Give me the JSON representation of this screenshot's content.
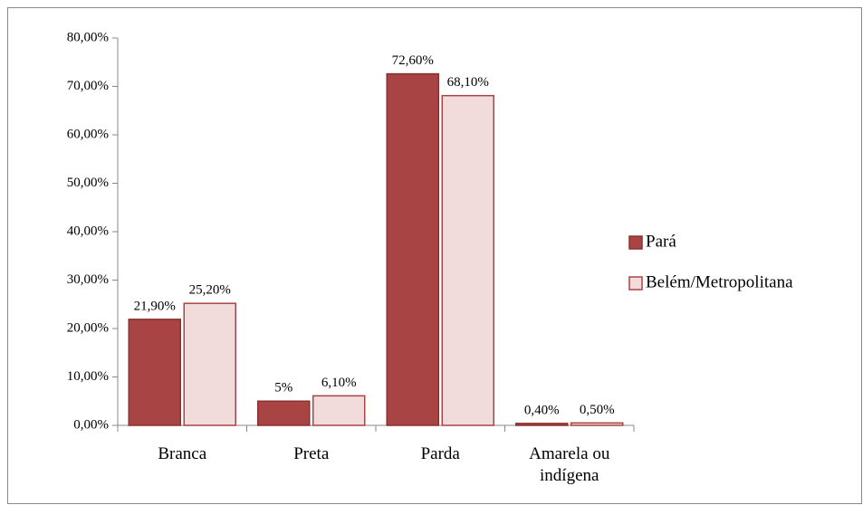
{
  "chart_data": {
    "type": "bar",
    "categories": [
      "Branca",
      "Preta",
      "Parda",
      "Amarela ou indígena"
    ],
    "series": [
      {
        "name": "Pará",
        "color": "#a84444",
        "values": [
          21.9,
          5,
          72.6,
          0.4
        ],
        "value_labels": [
          "21,90%",
          "5%",
          "72,60%",
          "0,40%"
        ]
      },
      {
        "name": "Belém/Metropolitana",
        "color": "#f2dcdb",
        "values": [
          25.2,
          6.1,
          68.1,
          0.5
        ],
        "value_labels": [
          "25,20%",
          "6,10%",
          "68,10%",
          "0,50%"
        ]
      }
    ],
    "ylim": [
      0,
      80
    ],
    "yticks": [
      {
        "value": 0,
        "label": "0,00%"
      },
      {
        "value": 10,
        "label": "10,00%"
      },
      {
        "value": 20,
        "label": "20,00%"
      },
      {
        "value": 30,
        "label": "30,00%"
      },
      {
        "value": 40,
        "label": "40,00%"
      },
      {
        "value": 50,
        "label": "50,00%"
      },
      {
        "value": 60,
        "label": "60,00%"
      },
      {
        "value": 70,
        "label": "70,00%"
      },
      {
        "value": 80,
        "label": "80,00%"
      }
    ],
    "legend": "right"
  }
}
